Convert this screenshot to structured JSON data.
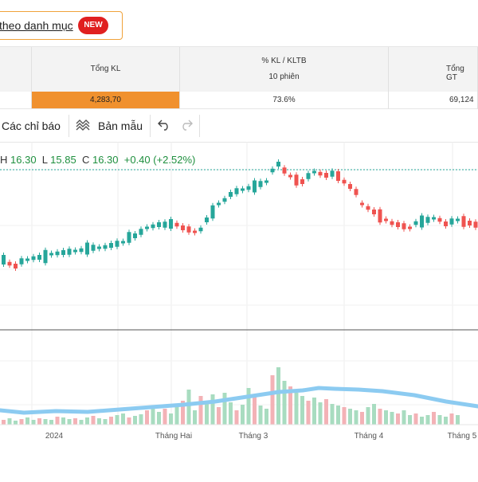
{
  "category_link": {
    "label": "theo danh mục",
    "badge": "NEW"
  },
  "stats": {
    "columns": [
      {
        "header": "",
        "subheader": "",
        "value": ""
      },
      {
        "header": "Tổng KL",
        "subheader": "",
        "value": "4,283,70"
      },
      {
        "header": "% KL / KLTB",
        "subheader": "10 phiên",
        "value": "73.6%"
      },
      {
        "header": "Tổng GT",
        "subheader": "",
        "value": "69,124"
      }
    ],
    "highlight_color": "#f0912e"
  },
  "toolbar": {
    "indicators_label": "Các chỉ báo",
    "templates_label": "Bản mẫu",
    "undo_icon": "undo-icon",
    "redo_icon": "redo-icon",
    "templates_icon": "templates-icon"
  },
  "ohlc": {
    "h_label": "H",
    "h_value": "16.30",
    "l_label": "L",
    "l_value": "15.85",
    "c_label": "C",
    "c_value": "16.30",
    "change": "+0.40 (+2.52%)"
  },
  "x_axis_labels": [
    "2024",
    "Tháng Hai",
    "Tháng 3",
    "Tháng 4",
    "Tháng 5"
  ],
  "colors": {
    "up": "#26a69a",
    "down": "#ef5350",
    "up_vol": "#a8dcc0",
    "down_vol": "#f3b2b6",
    "ma": "#7cc4f0",
    "last_price_line": "#26a69a"
  }
}
